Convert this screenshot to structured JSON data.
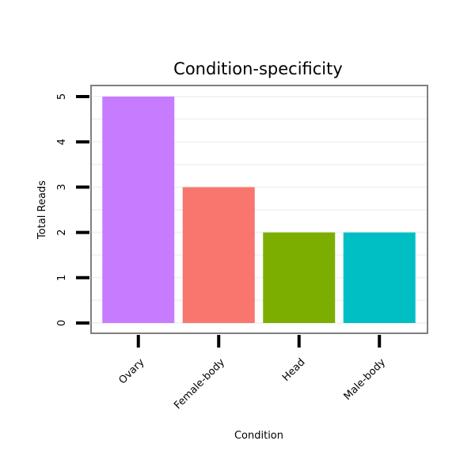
{
  "chart_data": {
    "type": "bar",
    "title": "Condition-specificity",
    "xlabel": "Condition",
    "ylabel": "Total Reads",
    "categories": [
      "Ovary",
      "Female-body",
      "Head",
      "Male-body"
    ],
    "values": [
      5,
      3,
      2,
      2
    ],
    "colors": [
      "#C77CFF",
      "#F8766D",
      "#7CAE00",
      "#00BFC4"
    ],
    "ylim": [
      0,
      5
    ],
    "yticks": [
      "0",
      "1",
      "2",
      "3",
      "4",
      "5"
    ],
    "grid": true,
    "legend": "none"
  }
}
